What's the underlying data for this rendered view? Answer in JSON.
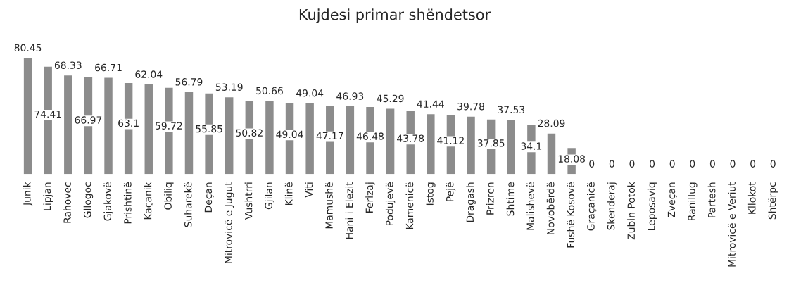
{
  "chart_data": {
    "type": "bar",
    "title": "Kujdesi primar shëndetsor",
    "categories": [
      "Junik",
      "Lipjan",
      "Rahovec",
      "Gllogoc",
      "Gjakovë",
      "Prishtinë",
      "Kaçanik",
      "Obiliq",
      "Suharekë",
      "Deçan",
      "Mitrovicë e Jugut",
      "Vushtrri",
      "Gjilan",
      "Klinë",
      "Viti",
      "Mamushë",
      "Hani i Elezit",
      "Ferizaj",
      "Podujevë",
      "Kamenicë",
      "Istog",
      "Pejë",
      "Dragash",
      "Prizren",
      "Shtime",
      "Malishevë",
      "Novobërdë",
      "Fushë Kosovë",
      "Graçanicë",
      "Skenderaj",
      "Zubin Potok",
      "Leposaviq",
      "Zveçan",
      "Ranillug",
      "Partesh",
      "Mitrovicë e Veriut",
      "Kllokot",
      "Shtërpc"
    ],
    "values": [
      80.45,
      74.41,
      68.33,
      66.97,
      66.71,
      63.1,
      62.04,
      59.72,
      56.79,
      55.85,
      53.19,
      50.82,
      50.66,
      49.04,
      49.04,
      47.17,
      46.93,
      46.48,
      45.29,
      43.78,
      41.44,
      41.12,
      39.78,
      37.85,
      37.53,
      34.1,
      28.09,
      18.08,
      0,
      0,
      0,
      0,
      0,
      0,
      0,
      0,
      0,
      0
    ],
    "color": "#8c8c8c",
    "data_labels": true,
    "grid": false,
    "legend": false
  }
}
